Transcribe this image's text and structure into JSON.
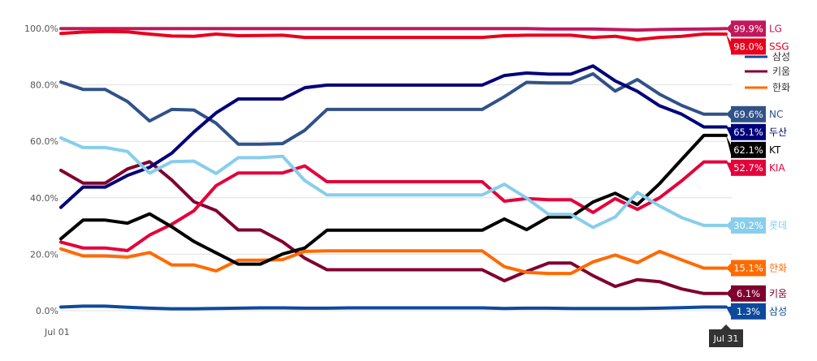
{
  "chart_data": {
    "type": "line",
    "x_start_label": "Jul 01",
    "x_end_label": "Jul 31",
    "y_ticks": [
      "0.0%",
      "20.0%",
      "40.0%",
      "60.0%",
      "80.0%",
      "100.0%"
    ],
    "ylim": [
      0,
      100
    ],
    "grid": true,
    "legend_placement": "right",
    "series": [
      {
        "name": "LG",
        "color": "#c2185b",
        "end_label": "99.9%",
        "tag": true,
        "values": [
          99.9,
          99.9,
          99.9,
          99.9,
          99.9,
          99.9,
          99.9,
          99.9,
          99.9,
          99.9,
          99.9,
          99.9,
          99.9,
          99.9,
          99.9,
          99.9,
          99.9,
          99.9,
          99.9,
          99.9,
          99.9,
          99.9,
          99.8,
          99.8,
          99.8,
          99.6,
          99.4,
          99.6,
          99.7,
          99.8,
          99.9
        ]
      },
      {
        "name": "SSG",
        "color": "#e8001c",
        "end_label": "98.0%",
        "tag": true,
        "values": [
          98.2,
          98.7,
          98.9,
          98.8,
          98.0,
          97.3,
          97.2,
          98.0,
          97.4,
          97.5,
          97.6,
          96.8,
          96.8,
          96.8,
          96.8,
          96.8,
          96.8,
          96.8,
          96.8,
          96.8,
          97.4,
          97.6,
          97.6,
          97.6,
          96.8,
          97.2,
          96.0,
          96.8,
          97.2,
          98.0,
          98.0
        ]
      },
      {
        "name": "삼성",
        "color": "#0e4a9c",
        "end_label": "1.3%",
        "tag": true,
        "values": [
          1.3,
          1.6,
          1.6,
          1.2,
          0.9,
          0.7,
          0.7,
          0.8,
          0.9,
          1.0,
          1.0,
          0.9,
          0.9,
          1.0,
          1.0,
          1.0,
          1.0,
          1.0,
          1.0,
          1.0,
          0.8,
          0.9,
          0.9,
          0.8,
          0.8,
          0.8,
          0.8,
          0.9,
          1.1,
          1.3,
          1.3
        ]
      },
      {
        "name": "키움",
        "color": "#800030",
        "end_label": "6.1%",
        "tag": true,
        "values": [
          49.7,
          45.2,
          45.2,
          50.2,
          52.8,
          46.3,
          38.6,
          35.5,
          28.6,
          28.6,
          24.4,
          18.6,
          14.5,
          14.5,
          14.5,
          14.5,
          14.5,
          14.5,
          14.5,
          14.5,
          10.6,
          13.9,
          16.9,
          16.9,
          12.4,
          8.6,
          11.0,
          10.3,
          7.7,
          6.1,
          6.1
        ]
      },
      {
        "name": "한화",
        "color": "#ff6a00",
        "end_label": "15.1%",
        "tag": true,
        "values": [
          21.9,
          19.4,
          19.4,
          19.0,
          20.6,
          16.2,
          16.2,
          14.1,
          17.9,
          17.9,
          18.1,
          21.0,
          21.2,
          21.2,
          21.2,
          21.2,
          21.2,
          21.2,
          21.2,
          21.2,
          15.6,
          13.6,
          13.2,
          13.2,
          17.3,
          19.7,
          17.0,
          21.0,
          18.0,
          15.1,
          15.1
        ]
      },
      {
        "name": "KIA",
        "color": "#e4003a",
        "end_label": "52.7%",
        "tag": true,
        "values": [
          24.3,
          22.2,
          22.2,
          21.3,
          26.8,
          30.6,
          35.4,
          44.3,
          48.8,
          48.8,
          48.8,
          51.3,
          45.7,
          45.7,
          45.7,
          45.7,
          45.7,
          45.7,
          45.7,
          45.7,
          38.8,
          39.7,
          39.3,
          39.3,
          34.8,
          39.7,
          35.9,
          40.0,
          46.0,
          52.7,
          52.7
        ]
      },
      {
        "name": "KT",
        "color": "#000000",
        "end_label": "62.1%",
        "tag": true,
        "values": [
          25.5,
          32.1,
          32.1,
          31.0,
          34.3,
          29.7,
          24.5,
          20.5,
          16.5,
          16.5,
          20.1,
          22.2,
          28.5,
          28.5,
          28.5,
          28.5,
          28.5,
          28.5,
          28.5,
          28.5,
          32.5,
          28.7,
          33.2,
          33.2,
          38.5,
          41.6,
          37.6,
          45.0,
          53.6,
          62.1,
          62.1
        ]
      },
      {
        "name": "NC",
        "color": "#315288",
        "end_label": "69.6%",
        "tag": true,
        "values": [
          81.0,
          78.4,
          78.4,
          74.1,
          67.2,
          71.3,
          71.1,
          66.4,
          59.0,
          59.0,
          59.2,
          63.9,
          71.3,
          71.3,
          71.3,
          71.3,
          71.3,
          71.3,
          71.3,
          71.3,
          75.8,
          80.9,
          80.7,
          80.7,
          83.9,
          77.8,
          81.9,
          76.7,
          72.7,
          69.6,
          69.6
        ]
      },
      {
        "name": "두산",
        "color": "#00007a",
        "end_label": "65.1%",
        "tag": true,
        "values": [
          36.6,
          43.8,
          43.8,
          47.9,
          50.8,
          55.8,
          63.3,
          70.1,
          75.0,
          75.0,
          75.0,
          79.0,
          79.9,
          79.9,
          79.9,
          79.9,
          79.9,
          79.9,
          79.9,
          79.9,
          83.3,
          84.2,
          83.8,
          83.8,
          86.7,
          81.4,
          77.7,
          72.6,
          69.6,
          65.1,
          65.1
        ]
      },
      {
        "name": "롯데",
        "color": "#87ceeb",
        "end_label": "30.2%",
        "tag": true,
        "values": [
          61.2,
          57.8,
          57.8,
          56.4,
          48.7,
          52.8,
          53.0,
          48.6,
          54.2,
          54.2,
          54.7,
          46.1,
          41.0,
          41.0,
          41.0,
          41.0,
          41.0,
          41.0,
          41.0,
          41.0,
          44.8,
          39.9,
          34.1,
          34.1,
          29.5,
          33.2,
          41.9,
          37.1,
          33.0,
          30.2,
          30.2
        ]
      }
    ],
    "legend_items": [
      {
        "name": "삼성",
        "color": "#0e4a9c"
      },
      {
        "name": "키움",
        "color": "#800030"
      },
      {
        "name": "한화",
        "color": "#ff6a00"
      }
    ]
  }
}
